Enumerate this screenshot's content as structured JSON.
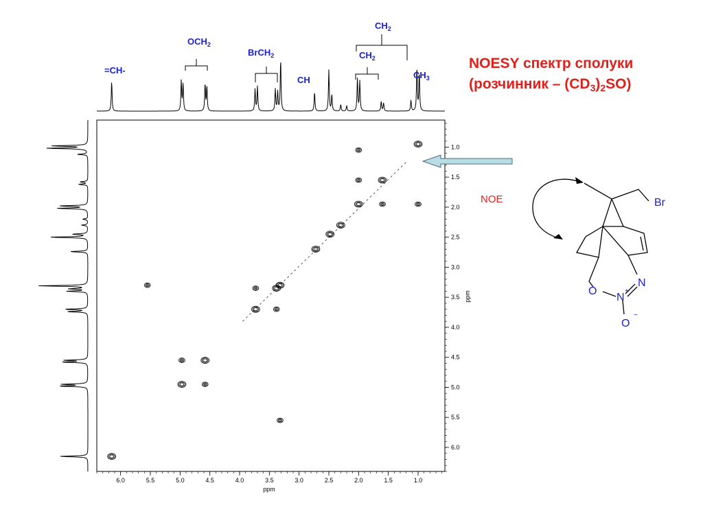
{
  "title": {
    "line1": "NOESY спектр сполуки",
    "line2_prefix": "(розчинник – (CD",
    "line2_sub1": "3",
    "line2_mid": ")",
    "line2_sub2": "2",
    "line2_suffix": "SO)"
  },
  "noe_label": "NOE",
  "peak_labels": [
    {
      "id": "ch-olefin",
      "text": "=CH-",
      "sub": ""
    },
    {
      "id": "och2",
      "text": "OCH",
      "sub": "2"
    },
    {
      "id": "brch2",
      "text": "BrCH",
      "sub": "2"
    },
    {
      "id": "ch",
      "text": "CH",
      "sub": ""
    },
    {
      "id": "ch2-a",
      "text": "CH",
      "sub": "2"
    },
    {
      "id": "ch2-b",
      "text": "CH",
      "sub": "2"
    },
    {
      "id": "ch3",
      "text": "CH",
      "sub": "3"
    }
  ],
  "molecule_labels": {
    "br": "Br",
    "o1": "O",
    "n1": "N",
    "n_charge": "+",
    "n2": "N",
    "o2": "O",
    "o_charge": "−"
  },
  "colors": {
    "title": "#e0201b",
    "labels": "#1a22c8",
    "arrow_fill": "#b9dde5",
    "molecule": "#1a22c8"
  },
  "chart_data": {
    "type": "scatter",
    "title": "",
    "xlabel": "ppm",
    "ylabel": "ppm",
    "xlim": [
      6.4,
      0.55
    ],
    "ylim": [
      0.55,
      6.4
    ],
    "x_ticks": [
      "6.0",
      "5.5",
      "5.0",
      "4.5",
      "4.0",
      "3.5",
      "3.0",
      "2.5",
      "2.0",
      "1.5",
      "1.0"
    ],
    "y_ticks": [
      "1.0",
      "1.5",
      "2.0",
      "2.5",
      "3.0",
      "3.5",
      "4.0",
      "4.5",
      "5.0",
      "5.5",
      "6.0"
    ],
    "x_tick_values": [
      6.0,
      5.5,
      5.0,
      4.5,
      4.0,
      3.5,
      3.0,
      2.5,
      2.0,
      1.5,
      1.0
    ],
    "y_tick_values": [
      1.0,
      1.5,
      2.0,
      2.5,
      3.0,
      3.5,
      4.0,
      4.5,
      5.0,
      5.5,
      6.0
    ],
    "diagonal_peaks": [
      {
        "x": 6.15,
        "y": 6.15
      },
      {
        "x": 4.97,
        "y": 4.95
      },
      {
        "x": 4.58,
        "y": 4.55
      },
      {
        "x": 3.73,
        "y": 3.7
      },
      {
        "x": 3.38,
        "y": 3.35
      },
      {
        "x": 3.32,
        "y": 3.3
      },
      {
        "x": 2.72,
        "y": 2.7
      },
      {
        "x": 2.48,
        "y": 2.45
      },
      {
        "x": 2.3,
        "y": 2.3
      },
      {
        "x": 2.0,
        "y": 1.95
      },
      {
        "x": 1.6,
        "y": 1.55
      },
      {
        "x": 1.0,
        "y": 0.95
      }
    ],
    "cross_peaks": [
      {
        "x": 4.97,
        "y": 4.55
      },
      {
        "x": 4.58,
        "y": 4.95
      },
      {
        "x": 3.73,
        "y": 3.35
      },
      {
        "x": 3.38,
        "y": 3.7
      },
      {
        "x": 3.32,
        "y": 5.55
      },
      {
        "x": 5.55,
        "y": 3.3
      },
      {
        "x": 2.0,
        "y": 1.05
      },
      {
        "x": 2.0,
        "y": 1.55
      },
      {
        "x": 1.6,
        "y": 1.95
      },
      {
        "x": 1.0,
        "y": 1.95
      }
    ],
    "spectrum_1d_peaks": [
      {
        "ppm": 6.15,
        "h": 0.55
      },
      {
        "ppm": 4.98,
        "h": 0.55
      },
      {
        "ppm": 4.95,
        "h": 0.5
      },
      {
        "ppm": 4.58,
        "h": 0.5
      },
      {
        "ppm": 4.55,
        "h": 0.45
      },
      {
        "ppm": 3.74,
        "h": 0.4
      },
      {
        "ppm": 3.7,
        "h": 0.45
      },
      {
        "ppm": 3.4,
        "h": 0.4
      },
      {
        "ppm": 3.36,
        "h": 0.35
      },
      {
        "ppm": 3.31,
        "h": 0.95
      },
      {
        "ppm": 2.74,
        "h": 0.35
      },
      {
        "ppm": 2.5,
        "h": 0.75
      },
      {
        "ppm": 2.45,
        "h": 0.3
      },
      {
        "ppm": 2.3,
        "h": 0.12
      },
      {
        "ppm": 2.2,
        "h": 0.1
      },
      {
        "ppm": 2.02,
        "h": 0.6
      },
      {
        "ppm": 1.98,
        "h": 0.55
      },
      {
        "ppm": 1.62,
        "h": 0.18
      },
      {
        "ppm": 1.58,
        "h": 0.15
      },
      {
        "ppm": 1.12,
        "h": 0.2
      },
      {
        "ppm": 1.02,
        "h": 0.8
      },
      {
        "ppm": 0.98,
        "h": 0.7
      }
    ]
  }
}
